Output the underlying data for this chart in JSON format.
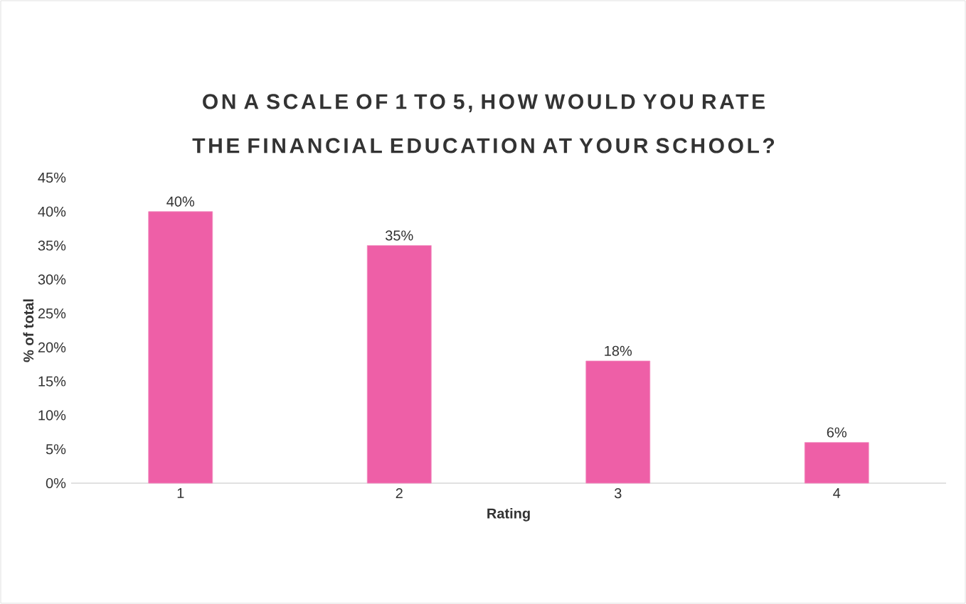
{
  "chart_data": {
    "type": "bar",
    "title": "ON A SCALE OF 1 TO 5, HOW WOULD YOU RATE THE FINANCIAL EDUCATION AT YOUR SCHOOL?",
    "xlabel": "Rating",
    "ylabel": "% of total",
    "categories": [
      "1",
      "2",
      "3",
      "4"
    ],
    "values": [
      40,
      35,
      18,
      6
    ],
    "value_labels": [
      "40%",
      "35%",
      "18%",
      "6%"
    ],
    "color": "#ee5fa7",
    "ylim": [
      0,
      45
    ],
    "yticks": [
      {
        "value": 0,
        "label": "0%"
      },
      {
        "value": 5,
        "label": "5%"
      },
      {
        "value": 10,
        "label": "10%"
      },
      {
        "value": 15,
        "label": "15%"
      },
      {
        "value": 20,
        "label": "20%"
      },
      {
        "value": 25,
        "label": "25%"
      },
      {
        "value": 30,
        "label": "30%"
      },
      {
        "value": 35,
        "label": "35%"
      },
      {
        "value": 40,
        "label": "40%"
      },
      {
        "value": 45,
        "label": "45%"
      }
    ],
    "grid": false
  }
}
